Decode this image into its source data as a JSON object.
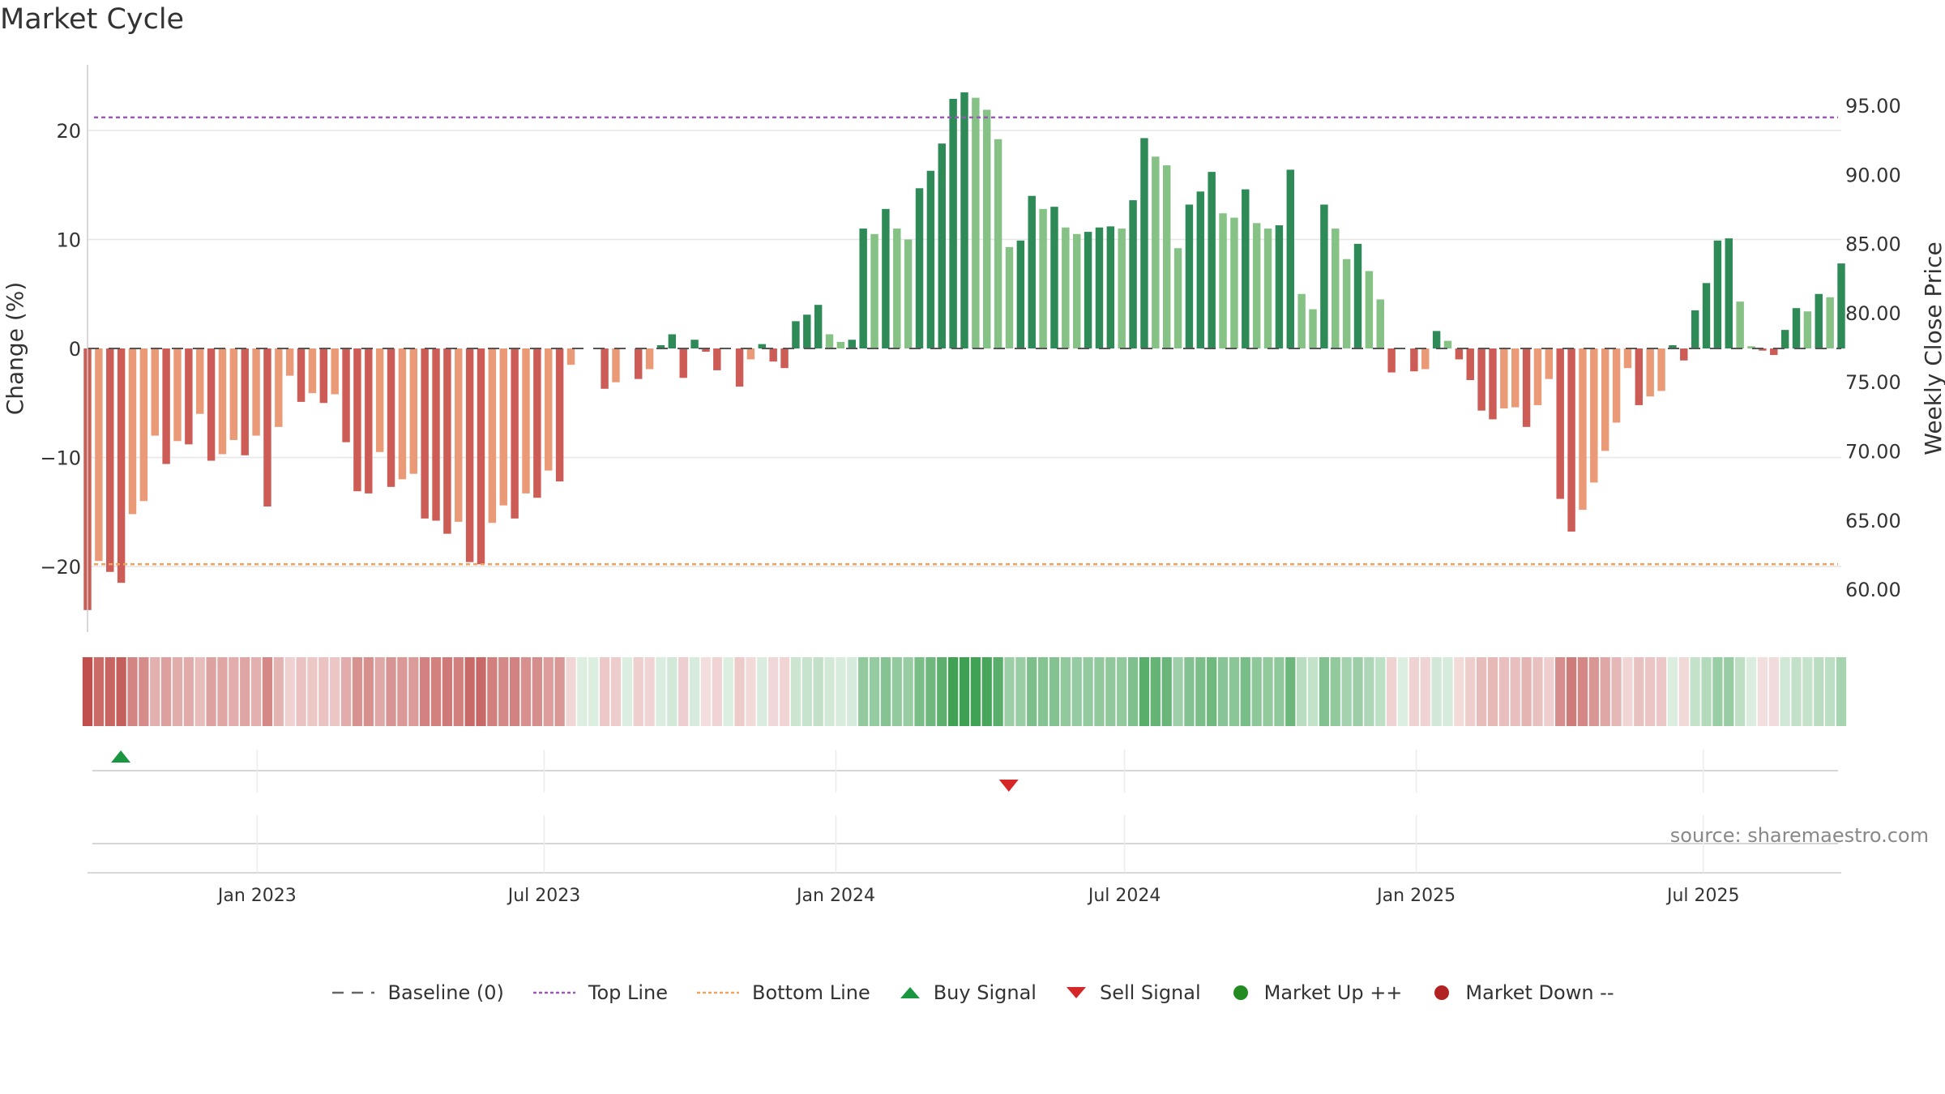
{
  "title": "Market Cycle",
  "source": "source: sharemaestro.com",
  "colors": {
    "down_dark": "#cd5c57",
    "down_light": "#eb9a78",
    "up_dark": "#2e8b57",
    "up_light": "#86c186",
    "top_line": "#9b59b6",
    "bottom_line": "#f0a35e",
    "buy": "#1a9641",
    "sell": "#d62728",
    "market_up": "#228b22",
    "market_down": "#b22222"
  },
  "legend": [
    {
      "label": "Baseline (0)",
      "icon": "dashed-gray-line"
    },
    {
      "label": "Top Line",
      "icon": "dotted-purple-line"
    },
    {
      "label": "Bottom Line",
      "icon": "dotted-orange-line"
    },
    {
      "label": "Buy Signal",
      "icon": "green-up-triangle"
    },
    {
      "label": "Sell Signal",
      "icon": "red-down-triangle"
    },
    {
      "label": "Market Up ++",
      "icon": "green-circle"
    },
    {
      "label": "Market Down --",
      "icon": "red-circle"
    }
  ],
  "chart_data": {
    "type": "bar",
    "ylabel": "Change (%)",
    "ylabel_right": "Weekly Close Price",
    "ylim": [
      -26,
      26
    ],
    "yticks": [
      20,
      10,
      0,
      -10,
      -20
    ],
    "ytick_labels": [
      "20",
      "10",
      "0",
      "−10",
      "−20"
    ],
    "right_ylim": [
      56.1,
      97.4
    ],
    "right_ticks": [
      95,
      90,
      85,
      80,
      75,
      70,
      65,
      60
    ],
    "right_tick_labels": [
      "95.00",
      "90.00",
      "85.00",
      "80.00",
      "75.00",
      "70.00",
      "65.00",
      "60.00"
    ],
    "top_line": 21.2,
    "bottom_line": -19.8,
    "baseline": 0,
    "x_start": "2022-09-16",
    "x_end": "2025-09-26",
    "x_step_days": 7,
    "xtick_dates": [
      "2023-01-01",
      "2023-07-01",
      "2024-01-01",
      "2024-07-01",
      "2025-01-01",
      "2025-07-01"
    ],
    "xtick_labels": [
      "Jan 2023",
      "Jul 2023",
      "Jan 2024",
      "Jul 2024",
      "Jan 2025",
      "Jul 2025"
    ],
    "values": [
      -24.0,
      -19.5,
      -20.5,
      -21.5,
      -15.2,
      -14.0,
      -8.0,
      -10.6,
      -8.5,
      -8.8,
      -6.0,
      -10.3,
      -9.7,
      -8.4,
      -9.8,
      -8.0,
      -14.5,
      -7.2,
      -2.5,
      -4.9,
      -4.1,
      -5.0,
      -4.2,
      -8.6,
      -13.1,
      -13.3,
      -9.5,
      -12.7,
      -12.0,
      -11.5,
      -15.6,
      -15.8,
      -17.0,
      -15.9,
      -19.6,
      -19.8,
      -16.0,
      -14.4,
      -15.6,
      -13.3,
      -13.7,
      -11.2,
      -12.2,
      -1.5,
      0.0,
      0.0,
      -3.7,
      -3.1,
      0.0,
      -2.8,
      -1.9,
      0.3,
      1.3,
      -2.7,
      0.8,
      -0.3,
      -2.0,
      0.0,
      -3.5,
      -1.0,
      0.4,
      -1.2,
      -1.8,
      2.5,
      3.1,
      4.0,
      1.3,
      0.6,
      0.8,
      11.0,
      10.5,
      12.8,
      11.0,
      10.0,
      14.7,
      16.3,
      18.8,
      22.9,
      23.5,
      23.0,
      21.9,
      19.2,
      9.3,
      9.9,
      14.0,
      12.8,
      13.0,
      11.1,
      10.5,
      10.7,
      11.1,
      11.2,
      11.0,
      13.6,
      19.3,
      17.6,
      16.8,
      9.2,
      13.2,
      14.4,
      16.2,
      12.4,
      12.0,
      14.6,
      11.5,
      11.0,
      11.3,
      16.4,
      5.0,
      3.6,
      13.2,
      11.0,
      8.2,
      9.6,
      7.1,
      4.5,
      -2.2,
      0.0,
      -2.1,
      -1.9,
      1.6,
      0.7,
      -1.0,
      -2.9,
      -5.7,
      -6.5,
      -5.5,
      -5.4,
      -7.2,
      -5.2,
      -2.8,
      -13.8,
      -16.8,
      -14.8,
      -12.3,
      -9.4,
      -6.8,
      -1.8,
      -5.2,
      -4.4,
      -3.9,
      0.3,
      -1.1,
      3.5,
      6.0,
      9.9,
      10.1,
      4.3,
      0.2,
      -0.2,
      -0.6,
      1.7,
      3.7,
      3.4,
      5.0,
      4.7,
      7.8
    ],
    "buy_signals": [
      "2022-10-07"
    ],
    "sell_signals": [
      "2024-04-19"
    ]
  }
}
